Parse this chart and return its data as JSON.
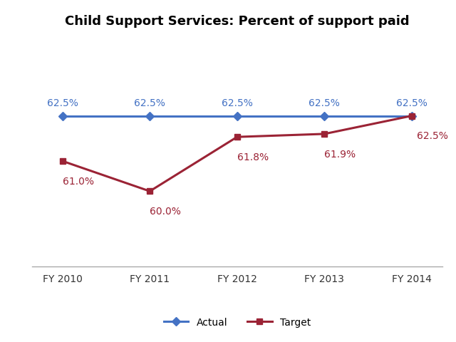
{
  "title": "Child Support Services: Percent of support paid",
  "years": [
    "FY 2010",
    "FY 2011",
    "FY 2012",
    "FY 2013",
    "FY 2014"
  ],
  "actual_values": [
    61.0,
    60.0,
    61.8,
    61.9,
    62.5
  ],
  "target_values": [
    62.5,
    62.5,
    62.5,
    62.5,
    62.5
  ],
  "actual_labels": [
    "61.0%",
    "60.0%",
    "61.8%",
    "61.9%",
    "62.5%"
  ],
  "target_labels": [
    "62.5%",
    "62.5%",
    "62.5%",
    "62.5%",
    "62.5%"
  ],
  "actual_color": "#9B2335",
  "target_color": "#4472C4",
  "ylim": [
    57.5,
    65.0
  ],
  "background_color": "#FFFFFF",
  "title_fontsize": 13,
  "legend_fontsize": 10,
  "label_fontsize": 10,
  "tick_fontsize": 10
}
